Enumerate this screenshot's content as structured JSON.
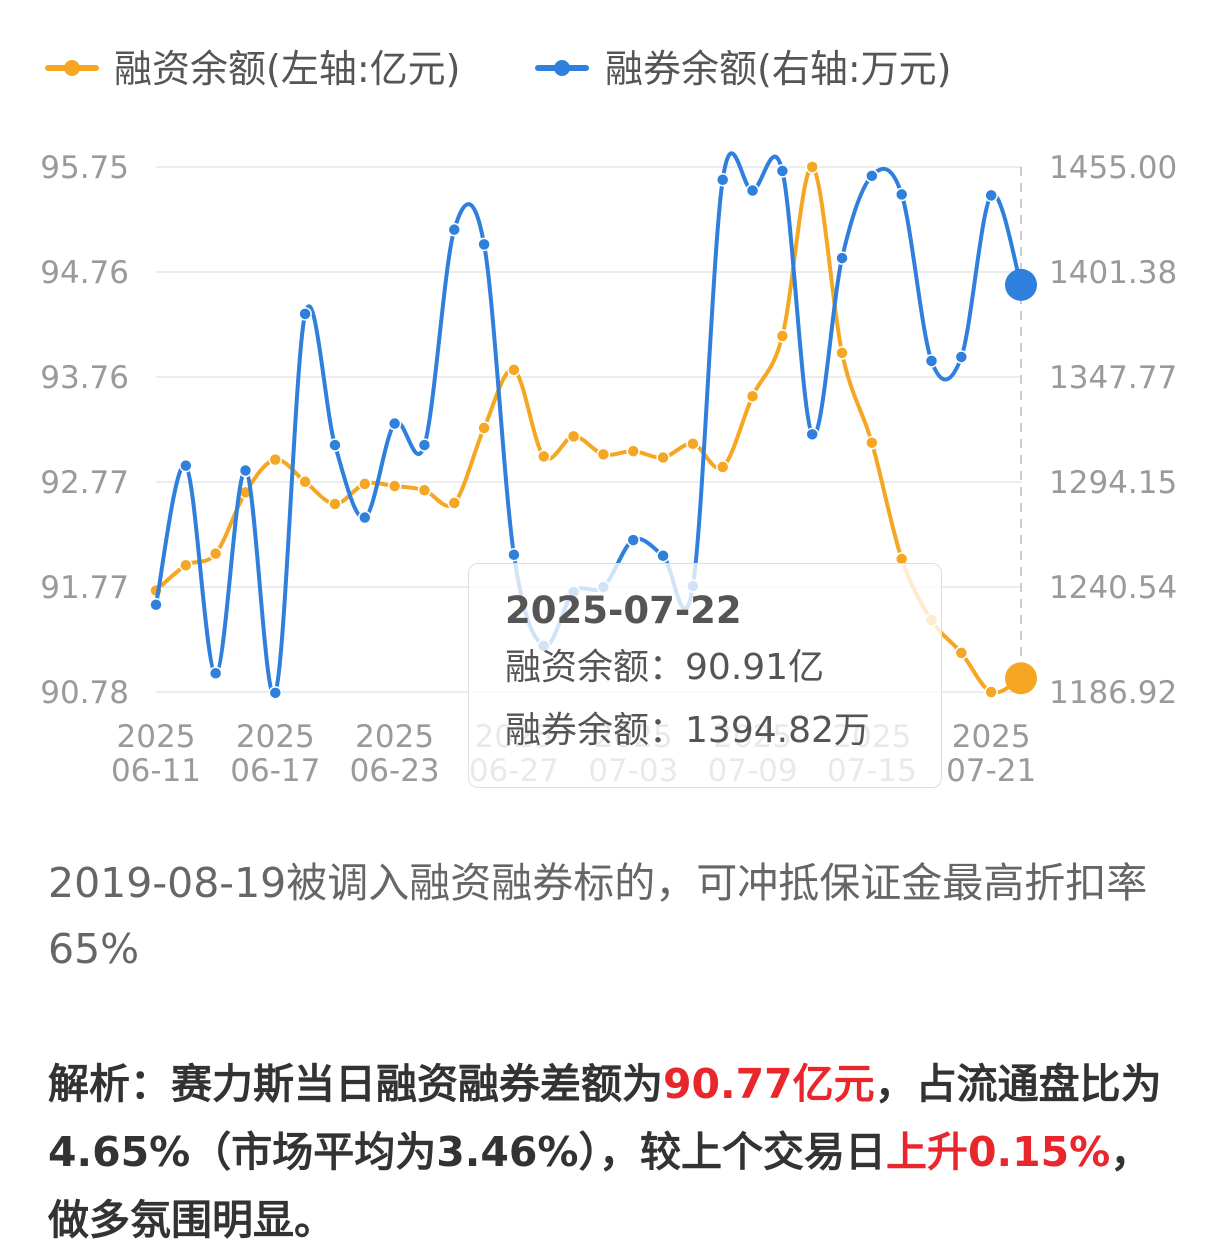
{
  "legend": {
    "financing": "融资余额(左轴:亿元)",
    "lending": "融券余额(右轴:万元)"
  },
  "colors": {
    "financing": "#f5a623",
    "lending": "#2f7fdc",
    "grid": "#ececec",
    "highlight": "#e8262b"
  },
  "chart_data": {
    "type": "line",
    "x": [
      "2025-06-11",
      "2025-06-12",
      "2025-06-13",
      "2025-06-16",
      "2025-06-17",
      "2025-06-18",
      "2025-06-19",
      "2025-06-20",
      "2025-06-23",
      "2025-06-24",
      "2025-06-25",
      "2025-06-26",
      "2025-06-27",
      "2025-06-30",
      "2025-07-01",
      "2025-07-02",
      "2025-07-03",
      "2025-07-04",
      "2025-07-07",
      "2025-07-08",
      "2025-07-09",
      "2025-07-10",
      "2025-07-11",
      "2025-07-14",
      "2025-07-15",
      "2025-07-16",
      "2025-07-17",
      "2025-07-18",
      "2025-07-21",
      "2025-07-22"
    ],
    "x_tick_labels": [
      {
        "year": "2025",
        "md": "06-11",
        "index": 0
      },
      {
        "year": "2025",
        "md": "06-17",
        "index": 4
      },
      {
        "year": "2025",
        "md": "06-23",
        "index": 8
      },
      {
        "year": "2025",
        "md": "06-27",
        "index": 12
      },
      {
        "year": "2025",
        "md": "07-03",
        "index": 16
      },
      {
        "year": "2025",
        "md": "07-09",
        "index": 20
      },
      {
        "year": "2025",
        "md": "07-15",
        "index": 24
      },
      {
        "year": "2025",
        "md": "07-21",
        "index": 28
      }
    ],
    "series": [
      {
        "name": "融资余额(左轴:亿元)",
        "axis": "left",
        "values": [
          91.74,
          91.98,
          92.09,
          92.67,
          92.98,
          92.77,
          92.56,
          92.75,
          92.73,
          92.69,
          92.57,
          93.28,
          93.83,
          93.01,
          93.2,
          93.03,
          93.06,
          93.0,
          93.13,
          92.91,
          93.58,
          94.15,
          95.75,
          93.99,
          93.14,
          92.04,
          91.46,
          91.15,
          90.78,
          90.91
        ]
      },
      {
        "name": "融券余额(右轴:万元)",
        "axis": "right",
        "values": [
          1231.5,
          1302.5,
          1196.5,
          1300,
          1186.5,
          1380,
          1313,
          1276,
          1324,
          1313,
          1423,
          1415.5,
          1257,
          1210.5,
          1238,
          1240.5,
          1264.5,
          1256.5,
          1241,
          1448.5,
          1443,
          1453,
          1318.5,
          1408.5,
          1450.5,
          1441,
          1356,
          1358,
          1440.5,
          1394.82
        ]
      }
    ],
    "y_left": {
      "ticks": [
        "95.75",
        "94.76",
        "93.76",
        "92.77",
        "91.77",
        "90.78"
      ],
      "range": [
        90.78,
        95.75
      ]
    },
    "y_right": {
      "ticks": [
        "1455.00",
        "1401.38",
        "1347.77",
        "1294.15",
        "1240.54",
        "1186.92"
      ],
      "range": [
        1186.92,
        1455.0
      ]
    },
    "grid": true,
    "legend_position": "top-left"
  },
  "tooltip": {
    "date": "2025-07-22",
    "financing_label": "融资余额：",
    "financing_value": "90.91亿",
    "lending_label": "融券余额：",
    "lending_value": "1394.82万"
  },
  "note": "2019-08-19被调入融资融券标的，可冲抵保证金最高折扣率65%",
  "analysis": {
    "p1": "解析：赛力斯当日融资融券差额为",
    "v1": "90.77亿元",
    "p2": "，占流通盘比为4.65%（市场平均为3.46%），较上个交易日",
    "v2": "上升0.15%",
    "p3": "，做多氛围明显。"
  }
}
